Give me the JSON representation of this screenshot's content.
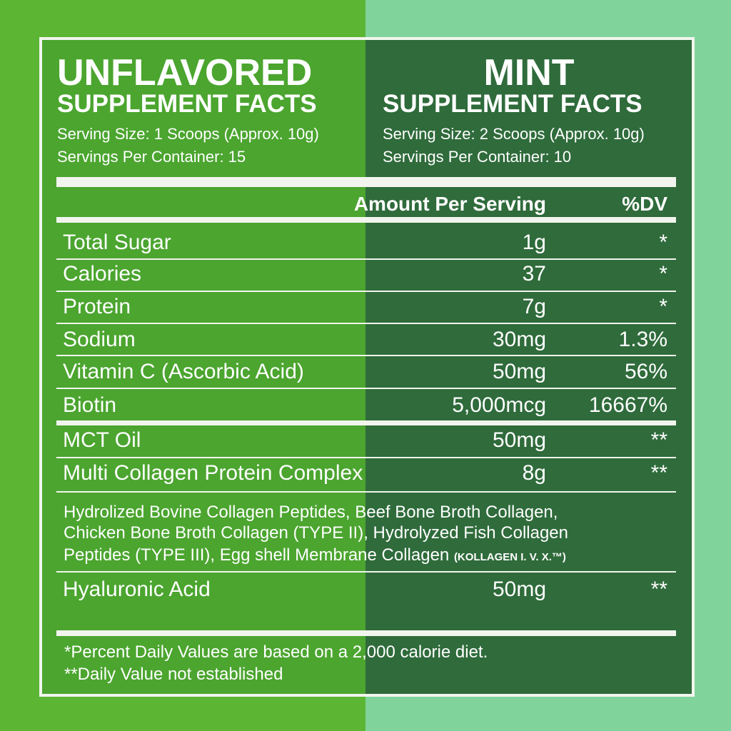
{
  "left": {
    "title": "UNFLAVORED",
    "subtitle": "SUPPLEMENT FACTS",
    "serving_size": "Serving Size: 1 Scoops (Approx. 10g)",
    "servings": "Servings Per Container: 15"
  },
  "right": {
    "title": "MINT",
    "subtitle": "SUPPLEMENT FACTS",
    "serving_size": "Serving Size: 2 Scoops (Approx. 10g)",
    "servings": "Servings Per Container: 10"
  },
  "table": {
    "header": {
      "amount": "Amount Per Serving",
      "dv": "%DV"
    },
    "rows": [
      {
        "name": "Total Sugar",
        "amount": "1g",
        "dv": "*"
      },
      {
        "name": "Calories",
        "amount": "37",
        "dv": "*"
      },
      {
        "name": "Protein",
        "amount": "7g",
        "dv": "*"
      },
      {
        "name": "Sodium",
        "amount": "30mg",
        "dv": "1.3%"
      },
      {
        "name": "Vitamin C (Ascorbic Acid)",
        "amount": "50mg",
        "dv": "56%"
      },
      {
        "name": "Biotin",
        "amount": "5,000mcg",
        "dv": "16667%"
      },
      {
        "name": "MCT Oil",
        "amount": "50mg",
        "dv": "**"
      },
      {
        "name": "Multi Collagen Protein Complex",
        "amount": "8g",
        "dv": "**"
      }
    ],
    "description": {
      "lines": [
        "Hydrolized Bovine Collagen Peptides, Beef Bone Broth Collagen,",
        "Chicken Bone Broth Collagen (TYPE II), Hydrolyzed Fish Collagen",
        "Peptides (TYPE III), Egg shell Membrane Collagen"
      ],
      "trademark": "(KOLLAGEN I. V. X.™)"
    },
    "last_row": {
      "name": "Hyaluronic Acid",
      "amount": "50mg",
      "dv": "**"
    }
  },
  "footnotes": [
    "*Percent Daily Values are based on a 2,000 calorie diet.",
    "**Daily Value not established"
  ]
}
